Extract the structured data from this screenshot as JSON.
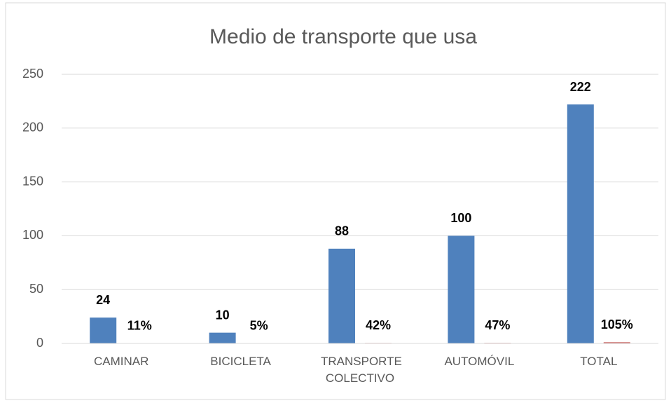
{
  "chart_data": {
    "type": "bar",
    "title": "Medio de transporte que usa",
    "categories": [
      "CAMINAR",
      "BICICLETA",
      "TRANSPORTE COLECTIVO",
      "AUTOMÓVIL",
      "TOTAL"
    ],
    "series": [
      {
        "color": "#4f81bd",
        "values": [
          24,
          10,
          88,
          100,
          222
        ]
      },
      {
        "color": "#c0504d",
        "values": [
          0.11,
          0.05,
          0.42,
          0.47,
          1.05
        ],
        "value_labels": [
          "11%",
          "5%",
          "42%",
          "47%",
          "105%"
        ]
      }
    ],
    "ylim": [
      0,
      250
    ],
    "yticks": [
      0,
      50,
      100,
      150,
      200,
      250
    ],
    "grid": true
  }
}
